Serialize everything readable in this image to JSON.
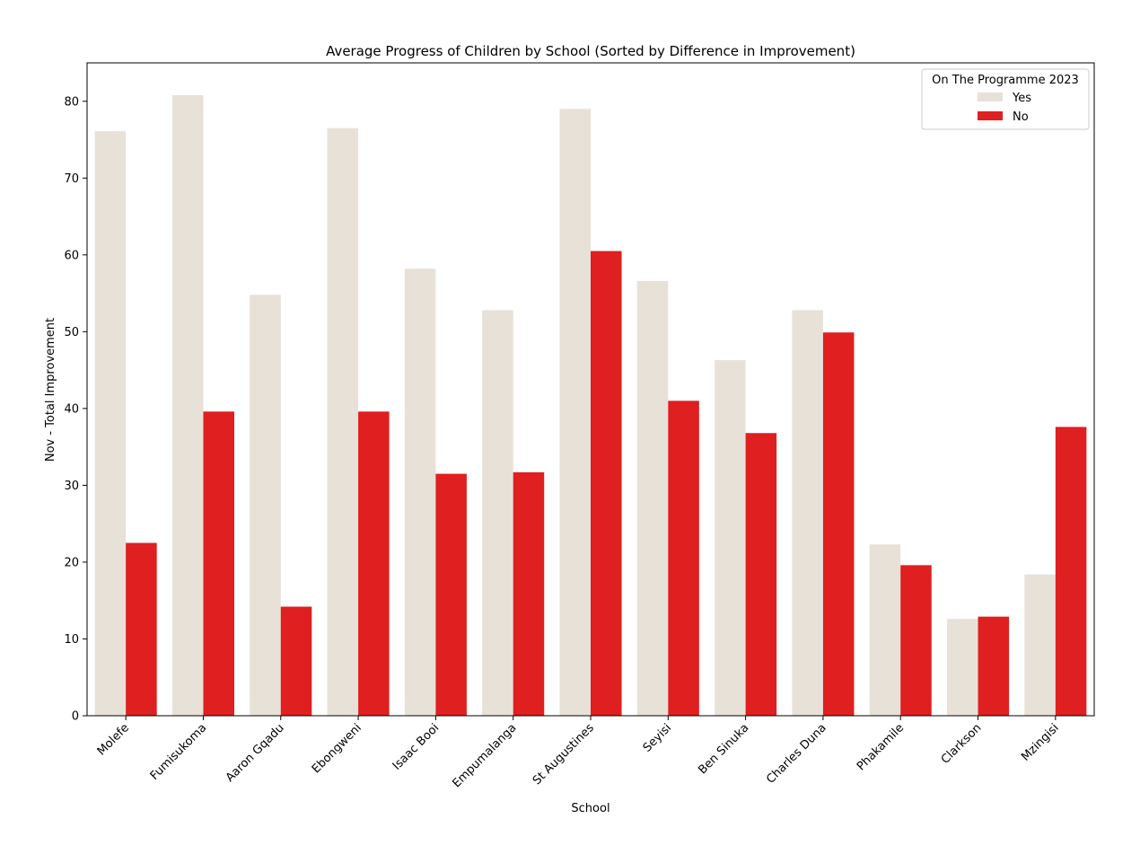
{
  "chart_data": {
    "type": "bar",
    "title": "Average Progress of Children by School (Sorted by Difference in Improvement)",
    "xlabel": "School",
    "ylabel": "Nov - Total Improvement",
    "ylim": [
      0,
      85
    ],
    "yticks": [
      0,
      10,
      20,
      30,
      40,
      50,
      60,
      70,
      80
    ],
    "categories": [
      "Molefe",
      "Fumisukoma",
      "Aaron Gqadu",
      "Ebongweni",
      "Isaac Booi",
      "Empumalanga",
      "St Augustines",
      "Seyisi",
      "Ben Sinuka",
      "Charles Duna",
      "Phakamile",
      "Clarkson",
      "Mzingisi"
    ],
    "legend": {
      "title": "On The Programme 2023",
      "position": "top-right"
    },
    "series": [
      {
        "name": "Yes",
        "color": "#e8e1d8",
        "values": [
          76.1,
          80.8,
          54.8,
          76.5,
          58.2,
          52.8,
          79.0,
          56.6,
          46.3,
          52.8,
          22.3,
          12.6,
          18.4
        ]
      },
      {
        "name": "No",
        "color": "#df1f20",
        "values": [
          22.5,
          39.6,
          14.2,
          39.6,
          31.5,
          31.7,
          60.5,
          41.0,
          36.8,
          49.9,
          19.6,
          12.9,
          37.6
        ]
      }
    ],
    "grid": false
  }
}
